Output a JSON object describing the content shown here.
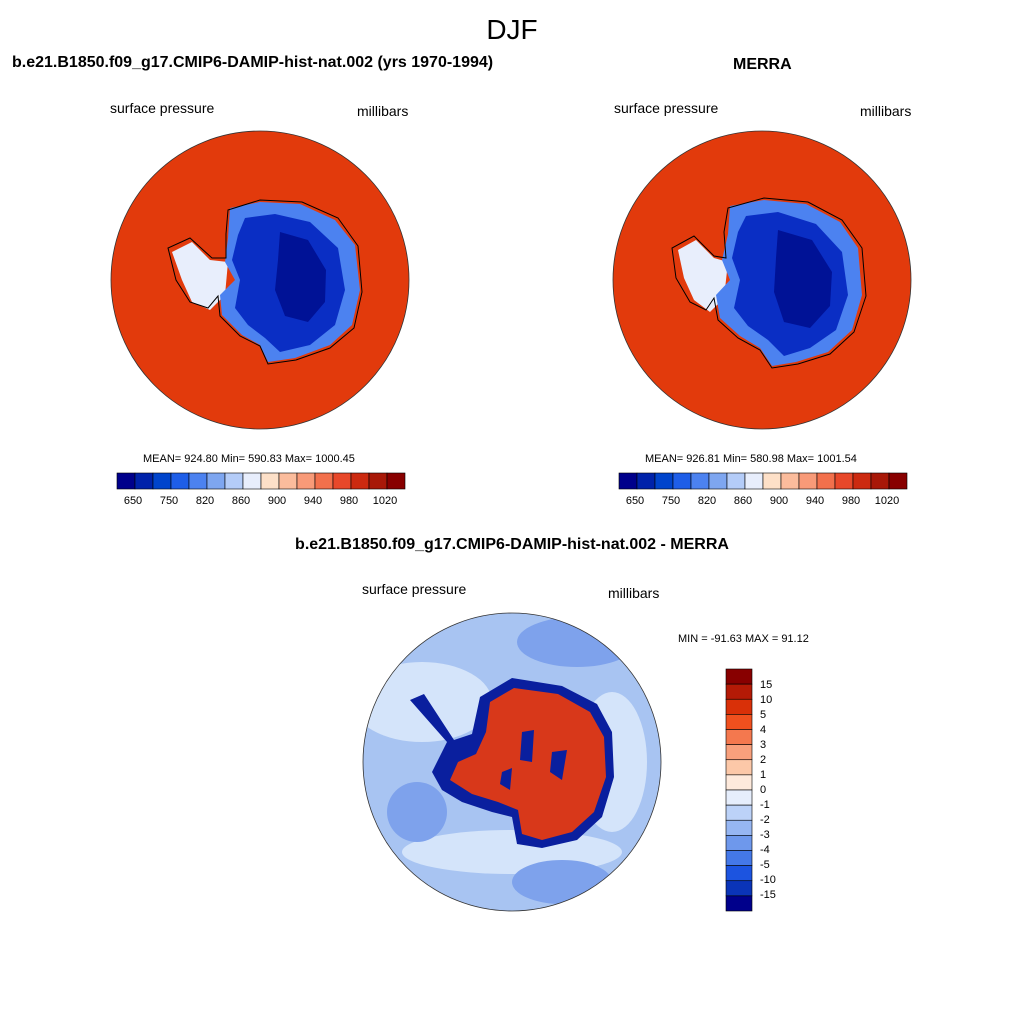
{
  "season": "DJF",
  "panels": {
    "model": {
      "title": "b.e21.B1850.f09_g17.CMIP6-DAMIP-hist-nat.002 (yrs 1970-1994)",
      "variable": "surface pressure",
      "units": "millibars",
      "stats": "MEAN= 924.80  Min= 590.83  Max= 1000.45"
    },
    "obs": {
      "title": "MERRA",
      "variable": "surface pressure",
      "units": "millibars",
      "stats": "MEAN= 926.81  Min= 580.98  Max= 1001.54"
    },
    "diff": {
      "title": "b.e21.B1850.f09_g17.CMIP6-DAMIP-hist-nat.002 - MERRA",
      "variable": "surface pressure",
      "units": "millibars",
      "stats": "MIN = -91.63 MAX =  91.12"
    }
  },
  "abs_colorbar": {
    "tick_labels": [
      "650",
      "750",
      "820",
      "860",
      "900",
      "940",
      "980",
      "1020"
    ],
    "colors": [
      "#00008b",
      "#0022aa",
      "#0044cc",
      "#1e5ee8",
      "#4c82f0",
      "#7ea6f0",
      "#b4ccf8",
      "#e8eefc",
      "#fde0c8",
      "#fbbc9c",
      "#f89a78",
      "#f2704c",
      "#e8482a",
      "#cc2a10",
      "#a81808",
      "#880000"
    ]
  },
  "diff_colorbar": {
    "tick_labels": [
      "15",
      "10",
      "5",
      "4",
      "3",
      "2",
      "1",
      "0",
      "-1",
      "-2",
      "-3",
      "-4",
      "-5",
      "-10",
      "-15"
    ],
    "colors": [
      "#880000",
      "#b41a06",
      "#d93008",
      "#f0501e",
      "#f4784e",
      "#f8a07c",
      "#fcc8a8",
      "#feeadc",
      "#e6eefc",
      "#bcd2f8",
      "#96b6f2",
      "#6e98ec",
      "#4478e8",
      "#1c54e0",
      "#0a34b8",
      "#00008b"
    ]
  },
  "map_colors": {
    "ocean_high": "#e23a0c",
    "ice_low": "#0a2ec4",
    "ice_center": "#001296",
    "diff_background": "#a8c4f2",
    "diff_light": "#d4e4fa",
    "diff_mid": "#7ea2ec",
    "diff_land_pos": "#d8381a",
    "diff_land_neg": "#0a1f9e"
  }
}
